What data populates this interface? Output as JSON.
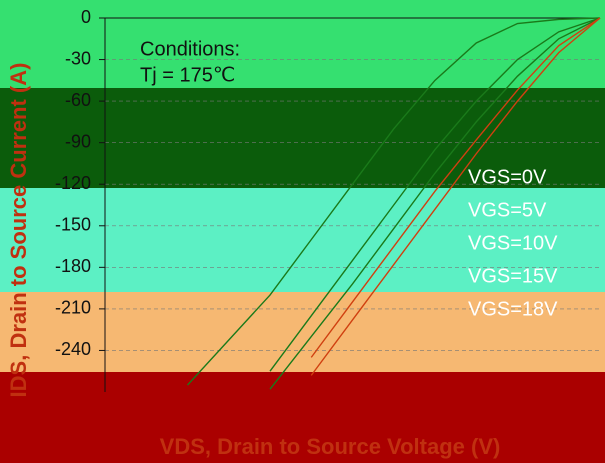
{
  "chart_data": {
    "type": "line",
    "title": "Conditions:",
    "subtitle": "Tj = 175℃",
    "y_label": "IDS, Drain to Source Current (A)",
    "x_label": "VDS, Drain to Source Voltage (V)",
    "x": [
      -6,
      -5,
      -4,
      -3.5,
      -3,
      -2.5,
      -2,
      -1.5,
      -1,
      -0.5,
      0
    ],
    "xlim": [
      -6,
      0
    ],
    "ylim": [
      -270,
      0
    ],
    "yticks": [
      0,
      -30,
      -60,
      -90,
      -120,
      -150,
      -180,
      -210,
      -240
    ],
    "grid": true,
    "series": [
      {
        "name": "VGS=0V",
        "color": "#1a7a1a",
        "values": [
          null,
          -265,
          -200,
          -160,
          -120,
          -80,
          -45,
          -18,
          -4,
          -1,
          0
        ]
      },
      {
        "name": "VGS=5V",
        "color": "#1a7a1a",
        "values": [
          null,
          null,
          -255,
          -215,
          -175,
          -135,
          -95,
          -60,
          -30,
          -10,
          0
        ]
      },
      {
        "name": "VGS=10V",
        "color": "#1a7a1a",
        "values": [
          null,
          null,
          -268,
          -230,
          -192,
          -152,
          -112,
          -75,
          -42,
          -15,
          0
        ]
      },
      {
        "name": "VGS=15V",
        "color": "#d04010",
        "values": [
          null,
          null,
          null,
          -245,
          -205,
          -165,
          -125,
          -88,
          -52,
          -20,
          0
        ]
      },
      {
        "name": "VGS=18V",
        "color": "#d04010",
        "values": [
          null,
          null,
          null,
          -258,
          -218,
          -178,
          -138,
          -98,
          -60,
          -25,
          0
        ]
      }
    ]
  }
}
